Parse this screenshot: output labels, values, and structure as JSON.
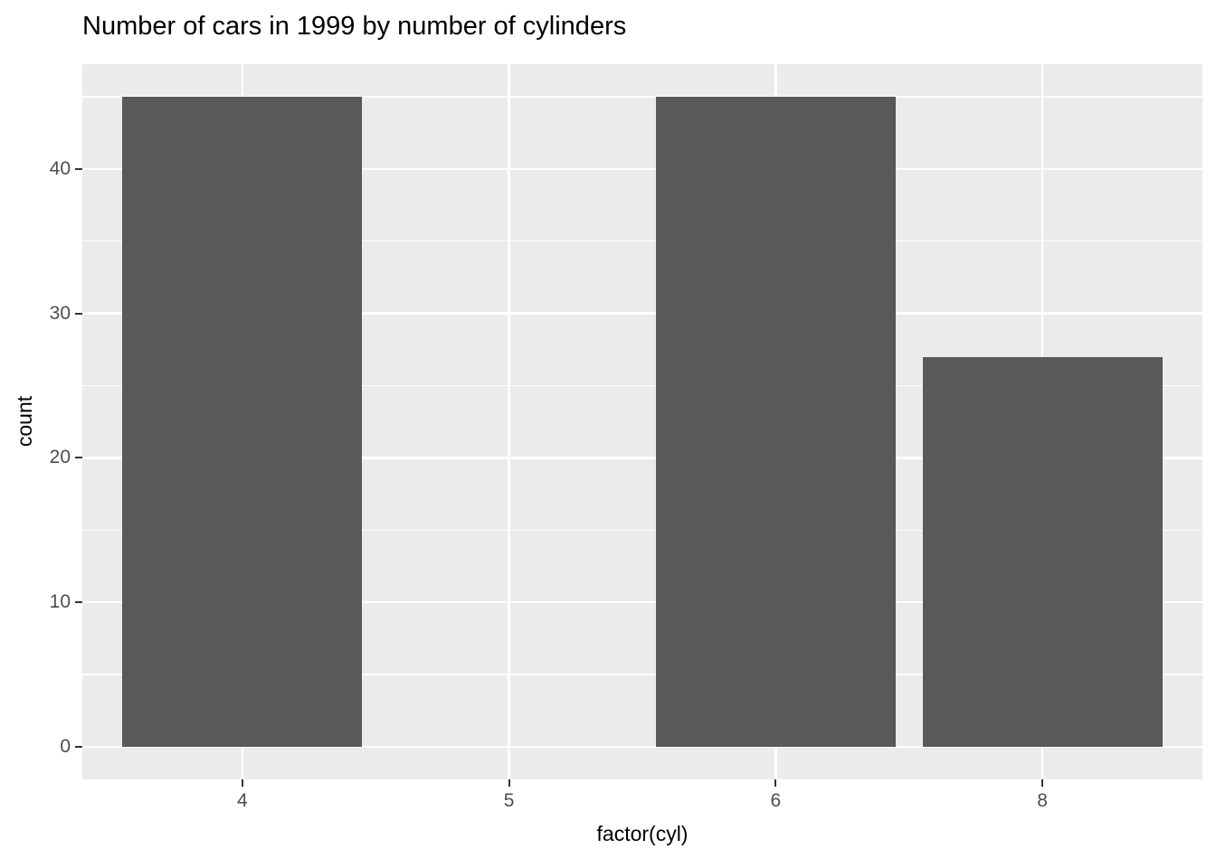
{
  "chart_data": {
    "type": "bar",
    "title": "Number of cars in 1999 by number of cylinders",
    "xlabel": "factor(cyl)",
    "ylabel": "count",
    "categories": [
      "4",
      "5",
      "6",
      "8"
    ],
    "values": [
      45,
      0,
      45,
      27
    ],
    "y_major_ticks": [
      0,
      10,
      20,
      30,
      40
    ],
    "y_minor_ticks": [
      5,
      15,
      25,
      35,
      45
    ],
    "ylim": [
      0,
      45
    ],
    "expansion_fraction": 0.05,
    "bar_width_ratio": 0.9,
    "grid": "on",
    "legend": "none",
    "style": {
      "bar_fill": "#595959",
      "panel_background": "#EBEBEB",
      "grid_color": "#FFFFFF",
      "tick_mark_color": "#333333",
      "tick_label_color": "#4D4D4D",
      "title_color": "#000000",
      "axis_title_color": "#000000",
      "figure_background": "#FFFFFF"
    }
  }
}
